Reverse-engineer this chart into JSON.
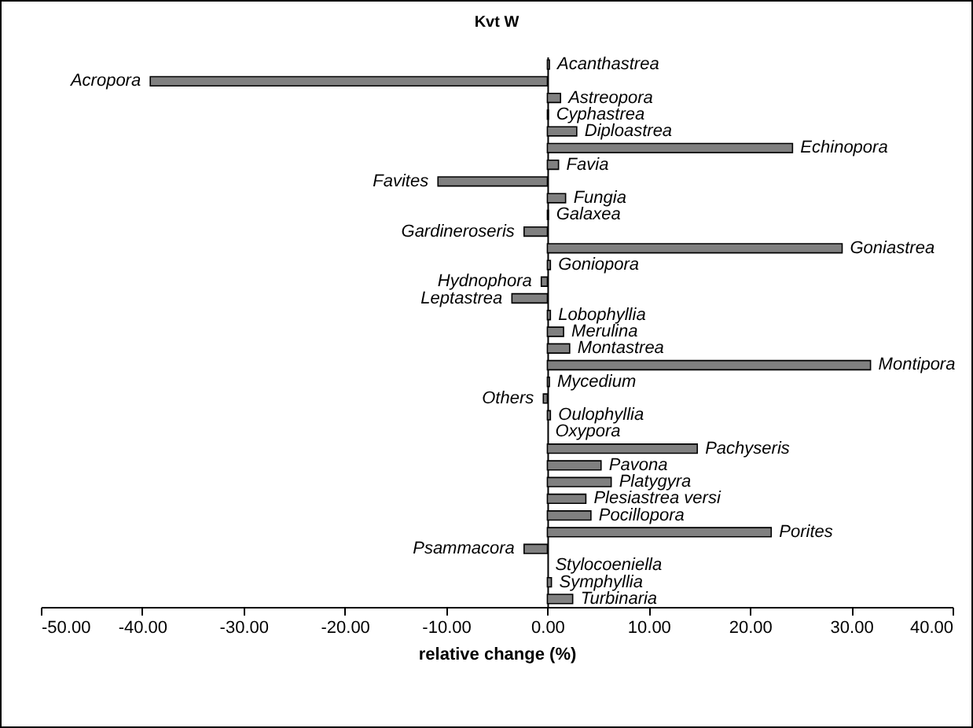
{
  "chart_data": {
    "type": "bar",
    "orientation": "horizontal",
    "title": "Kvt W",
    "xlabel": "relative change (%)",
    "categories": [
      "Acanthastrea",
      "Acropora",
      "Astreopora",
      "Cyphastrea",
      "Diploastrea",
      "Echinopora",
      "Favia",
      "Favites",
      "Fungia",
      "Galaxea",
      "Gardineroseris",
      "Goniastrea",
      "Goniopora",
      "Hydnophora",
      "Leptastrea",
      "Lobophyllia",
      "Merulina",
      "Montastrea",
      "Montipora",
      "Mycedium",
      "Others",
      "Oulophyllia",
      "Oxypora",
      "Pachyseris",
      "Pavona",
      "Platygyra",
      "Plesiastrea versi",
      "Pocillopora",
      "Porites",
      "Psammacora",
      "Stylocoeniella",
      "Symphyllia",
      "Turbinaria"
    ],
    "values": [
      0.2,
      -39.2,
      1.3,
      0.1,
      2.9,
      24.2,
      1.1,
      -10.8,
      1.8,
      0.1,
      -2.3,
      29.1,
      0.3,
      -0.6,
      -3.5,
      0.3,
      1.6,
      2.2,
      31.9,
      0.2,
      -0.4,
      0.3,
      0,
      14.8,
      5.3,
      6.3,
      3.8,
      4.3,
      22.1,
      -2.3,
      0,
      0.4,
      2.5
    ],
    "color": "#808080",
    "xlim": [
      -50,
      40
    ],
    "xticks": [
      {
        "value": -50,
        "label": "-50.00"
      },
      {
        "value": -40,
        "label": "-40.00"
      },
      {
        "value": -30,
        "label": "-30.00"
      },
      {
        "value": -20,
        "label": "-20.00"
      },
      {
        "value": -10,
        "label": "-10.00"
      },
      {
        "value": 0,
        "label": "0.00"
      },
      {
        "value": 10,
        "label": "10.00"
      },
      {
        "value": 20,
        "label": "20.00"
      },
      {
        "value": 30,
        "label": "30.00"
      },
      {
        "value": 40,
        "label": "40.00"
      }
    ],
    "grid": false
  }
}
